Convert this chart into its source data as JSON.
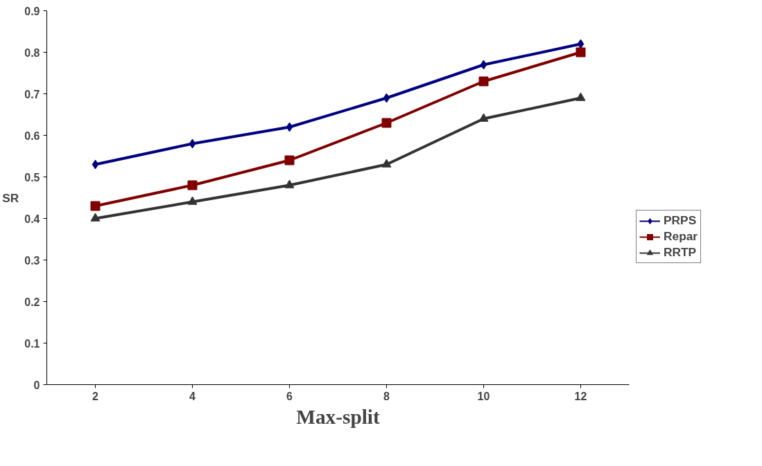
{
  "chart_data": {
    "type": "line",
    "xlabel": "Max-split",
    "ylabel": "SR",
    "categories": [
      "2",
      "4",
      "6",
      "8",
      "10",
      "12"
    ],
    "series": [
      {
        "name": "PRPS",
        "color": "#000080",
        "marker": "diamond",
        "values": [
          0.53,
          0.58,
          0.62,
          0.69,
          0.77,
          0.82
        ]
      },
      {
        "name": "Repar",
        "color": "#800000",
        "marker": "square",
        "values": [
          0.43,
          0.48,
          0.54,
          0.63,
          0.73,
          0.8
        ]
      },
      {
        "name": "RRTP",
        "color": "#333333",
        "marker": "triangle",
        "values": [
          0.4,
          0.44,
          0.48,
          0.53,
          0.64,
          0.69
        ]
      }
    ],
    "ylim": [
      0,
      0.9
    ],
    "yticks": [
      0,
      0.1,
      0.2,
      0.3,
      0.4,
      0.5,
      0.6,
      0.7,
      0.8,
      0.9
    ],
    "grid": false,
    "legend": "right",
    "line_style": "solid"
  }
}
